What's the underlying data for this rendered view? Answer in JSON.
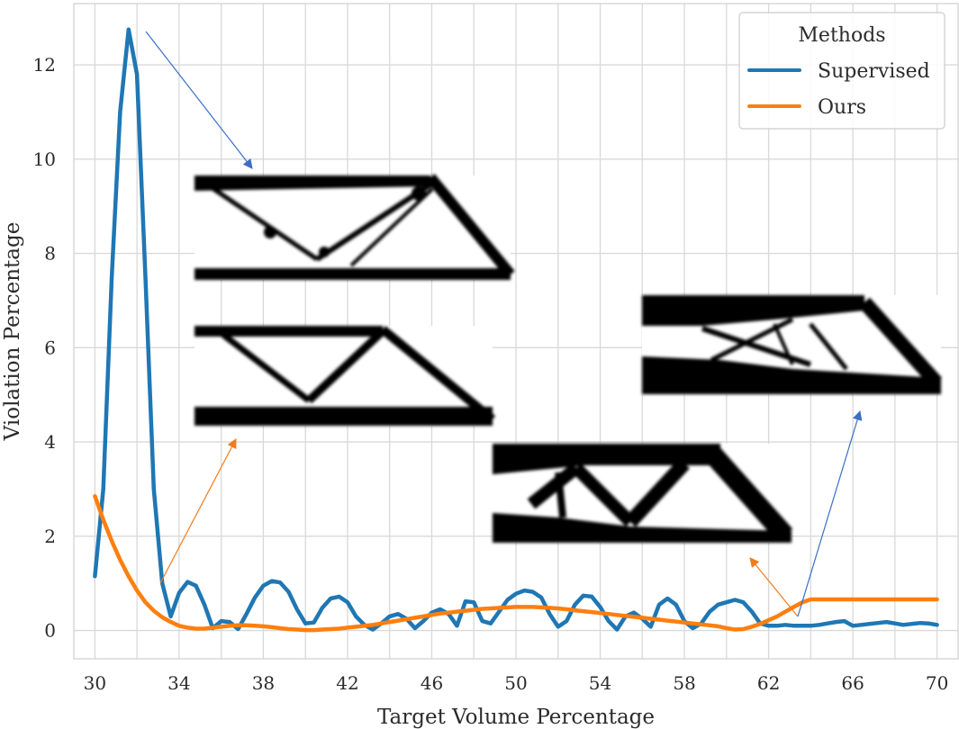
{
  "chart_data": {
    "type": "line",
    "title": "",
    "xlabel": "Target Volume Percentage",
    "ylabel": "Violation Percentage",
    "xlim": [
      29,
      71
    ],
    "ylim": [
      -0.6,
      13.3
    ],
    "xticks": [
      "30",
      "34",
      "38",
      "42",
      "46",
      "50",
      "54",
      "58",
      "62",
      "66",
      "70"
    ],
    "yticks": [
      "0",
      "2",
      "4",
      "6",
      "8",
      "10",
      "12"
    ],
    "grid": true,
    "legend": {
      "title": "Methods",
      "placement": "top-right"
    },
    "series": [
      {
        "name": "Supervised",
        "color": "#1f77b4",
        "x": [
          30,
          30.4,
          30.8,
          31.2,
          31.6,
          32,
          32.4,
          32.8,
          33.2,
          33.6,
          34,
          34.4,
          34.8,
          35.2,
          35.6,
          36,
          36.4,
          36.8,
          37.2,
          37.6,
          38,
          38.4,
          38.8,
          39.2,
          39.6,
          40,
          40.4,
          40.8,
          41.2,
          41.6,
          42,
          42.4,
          42.8,
          43.2,
          43.6,
          44,
          44.4,
          44.8,
          45.2,
          45.6,
          46,
          46.4,
          46.8,
          47.2,
          47.6,
          48,
          48.4,
          48.8,
          49.2,
          49.6,
          50,
          50.4,
          50.8,
          51.2,
          51.6,
          52,
          52.4,
          52.8,
          53.2,
          53.6,
          54,
          54.4,
          54.8,
          55.2,
          55.6,
          56,
          56.4,
          56.8,
          57.2,
          57.6,
          58,
          58.4,
          58.8,
          59.2,
          59.6,
          60,
          60.4,
          60.8,
          61.2,
          61.6,
          62,
          62.4,
          62.8,
          63.2,
          63.6,
          64,
          64.4,
          64.8,
          65.2,
          65.6,
          66,
          66.4,
          66.8,
          67.2,
          67.6,
          68,
          68.4,
          68.8,
          69.2,
          69.6,
          70
        ],
        "y": [
          1.15,
          3.0,
          7.5,
          11.0,
          12.75,
          11.8,
          7.5,
          3.0,
          1.0,
          0.3,
          0.8,
          1.03,
          0.95,
          0.55,
          0.05,
          0.2,
          0.18,
          0.03,
          0.35,
          0.7,
          0.95,
          1.05,
          1.02,
          0.82,
          0.45,
          0.15,
          0.17,
          0.48,
          0.68,
          0.72,
          0.6,
          0.3,
          0.12,
          0.02,
          0.15,
          0.3,
          0.35,
          0.25,
          0.05,
          0.2,
          0.38,
          0.45,
          0.35,
          0.1,
          0.62,
          0.6,
          0.2,
          0.15,
          0.4,
          0.65,
          0.78,
          0.85,
          0.82,
          0.7,
          0.35,
          0.08,
          0.2,
          0.55,
          0.74,
          0.72,
          0.5,
          0.2,
          0.02,
          0.3,
          0.38,
          0.25,
          0.08,
          0.55,
          0.68,
          0.55,
          0.2,
          0.05,
          0.15,
          0.4,
          0.55,
          0.6,
          0.65,
          0.6,
          0.4,
          0.15,
          0.1,
          0.1,
          0.12,
          0.1,
          0.1,
          0.1,
          0.12,
          0.15,
          0.18,
          0.2,
          0.1,
          0.12,
          0.14,
          0.16,
          0.18,
          0.15,
          0.12,
          0.14,
          0.16,
          0.15,
          0.12
        ]
      },
      {
        "name": "Ours",
        "color": "#ff7f0e",
        "x": [
          30,
          30.4,
          30.8,
          31.2,
          31.6,
          32,
          32.4,
          32.8,
          33.2,
          33.6,
          34,
          34.4,
          34.8,
          35.2,
          35.6,
          36,
          36.4,
          36.8,
          37.2,
          37.6,
          38,
          38.4,
          38.8,
          39.2,
          39.6,
          40,
          40.4,
          40.8,
          41.2,
          41.6,
          42,
          42.4,
          42.8,
          43.2,
          43.6,
          44,
          44.4,
          44.8,
          45.2,
          45.6,
          46,
          46.4,
          46.8,
          47.2,
          47.6,
          48,
          48.4,
          48.8,
          49.2,
          49.6,
          50,
          50.4,
          50.8,
          51.2,
          51.6,
          52,
          52.4,
          52.8,
          53.2,
          53.6,
          54,
          54.4,
          54.8,
          55.2,
          55.6,
          56,
          56.4,
          56.8,
          57.2,
          57.6,
          58,
          58.4,
          58.8,
          59.2,
          59.6,
          60,
          60.4,
          60.8,
          61.2,
          61.6,
          62,
          62.4,
          62.8,
          63.2,
          63.6,
          64,
          64.4,
          64.8,
          65.2,
          65.6,
          66,
          66.4,
          66.8,
          67.2,
          67.6,
          68,
          68.4,
          68.8,
          69.2,
          69.6,
          70
        ],
        "y": [
          2.85,
          2.35,
          1.9,
          1.5,
          1.15,
          0.85,
          0.6,
          0.42,
          0.28,
          0.18,
          0.1,
          0.06,
          0.04,
          0.04,
          0.06,
          0.08,
          0.1,
          0.11,
          0.11,
          0.1,
          0.09,
          0.07,
          0.05,
          0.03,
          0.02,
          0.01,
          0.01,
          0.02,
          0.03,
          0.04,
          0.06,
          0.08,
          0.1,
          0.12,
          0.15,
          0.18,
          0.21,
          0.24,
          0.27,
          0.3,
          0.33,
          0.36,
          0.38,
          0.4,
          0.42,
          0.44,
          0.46,
          0.47,
          0.48,
          0.49,
          0.5,
          0.5,
          0.5,
          0.49,
          0.48,
          0.47,
          0.45,
          0.43,
          0.41,
          0.39,
          0.37,
          0.35,
          0.33,
          0.31,
          0.29,
          0.27,
          0.25,
          0.23,
          0.21,
          0.19,
          0.17,
          0.15,
          0.13,
          0.11,
          0.09,
          0.05,
          0.02,
          0.03,
          0.08,
          0.14,
          0.22,
          0.3,
          0.4,
          0.5,
          0.6,
          0.66,
          0.66,
          0.66,
          0.66,
          0.66,
          0.66,
          0.66,
          0.66,
          0.66,
          0.66,
          0.66,
          0.66,
          0.66,
          0.66,
          0.66,
          0.66
        ]
      }
    ]
  }
}
